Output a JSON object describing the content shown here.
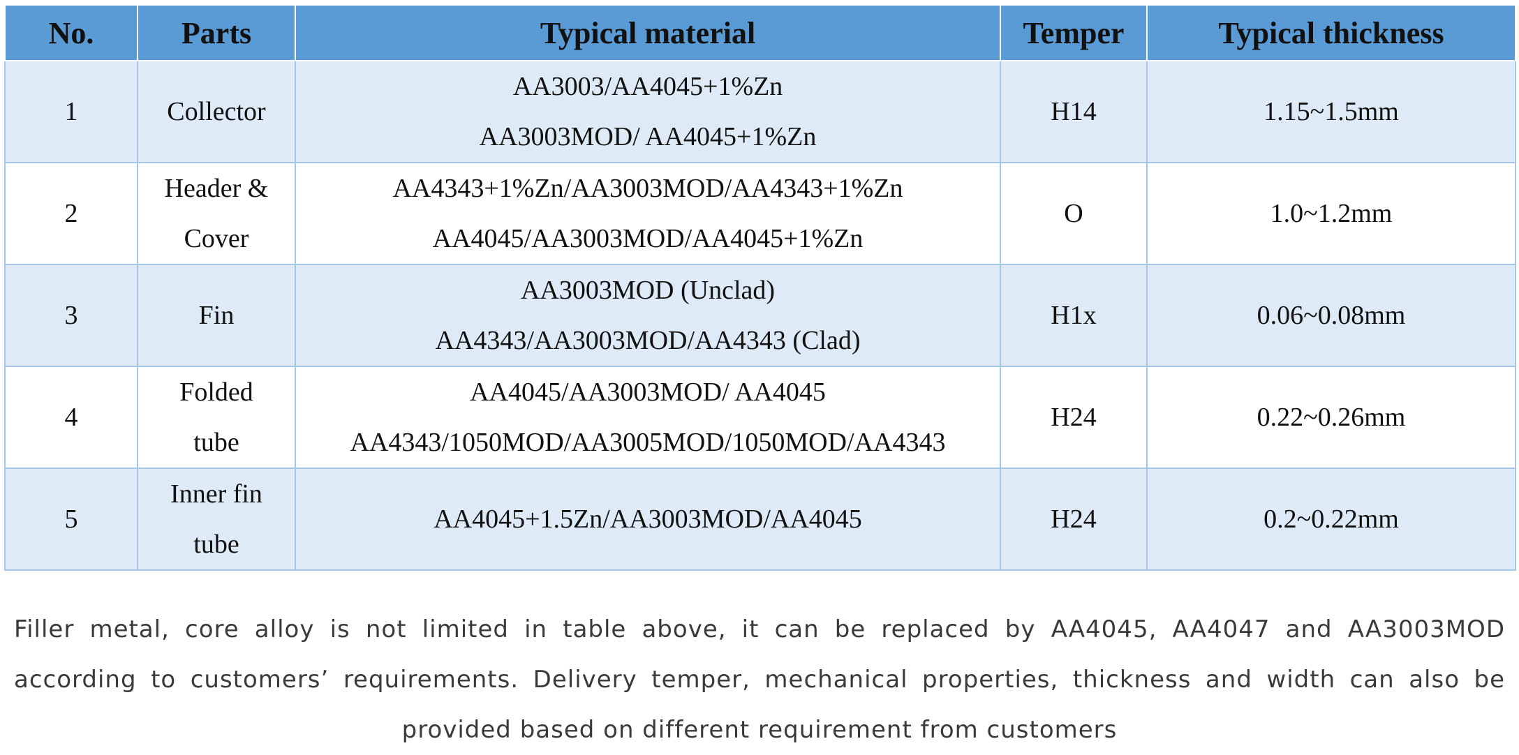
{
  "headers": [
    "No.",
    "Parts",
    "Typical material",
    "Temper",
    "Typical thickness"
  ],
  "rows": [
    {
      "no": "1",
      "parts": [
        "Collector"
      ],
      "materials": [
        "AA3003/AA4045+1%Zn",
        "AA3003MOD/ AA4045+1%Zn"
      ],
      "temper": "H14",
      "thickness": "1.15~1.5mm"
    },
    {
      "no": "2",
      "parts": [
        "Header &",
        "Cover"
      ],
      "materials": [
        "AA4343+1%Zn/AA3003MOD/AA4343+1%Zn",
        "AA4045/AA3003MOD/AA4045+1%Zn"
      ],
      "temper": "O",
      "thickness": "1.0~1.2mm"
    },
    {
      "no": "3",
      "parts": [
        "Fin"
      ],
      "materials": [
        "AA3003MOD (Unclad)",
        "AA4343/AA3003MOD/AA4343 (Clad)"
      ],
      "temper": "H1x",
      "thickness": "0.06~0.08mm"
    },
    {
      "no": "4",
      "parts": [
        "Folded",
        "tube"
      ],
      "materials": [
        "AA4045/AA3003MOD/ AA4045",
        "AA4343/1050MOD/AA3005MOD/1050MOD/AA4343"
      ],
      "temper": "H24",
      "thickness": "0.22~0.26mm"
    },
    {
      "no": "5",
      "parts": [
        "Inner fin",
        "tube"
      ],
      "materials": [
        "AA4045+1.5Zn/AA3003MOD/AA4045"
      ],
      "temper": "H24",
      "thickness": "0.2~0.22mm"
    }
  ],
  "note": "Filler metal, core alloy is not limited in table above, it can be replaced by AA4045, AA4047 and AA3003MOD according to customers’ requirements. Delivery temper, mechanical properties, thickness and width can also be provided based on different requirement from customers"
}
